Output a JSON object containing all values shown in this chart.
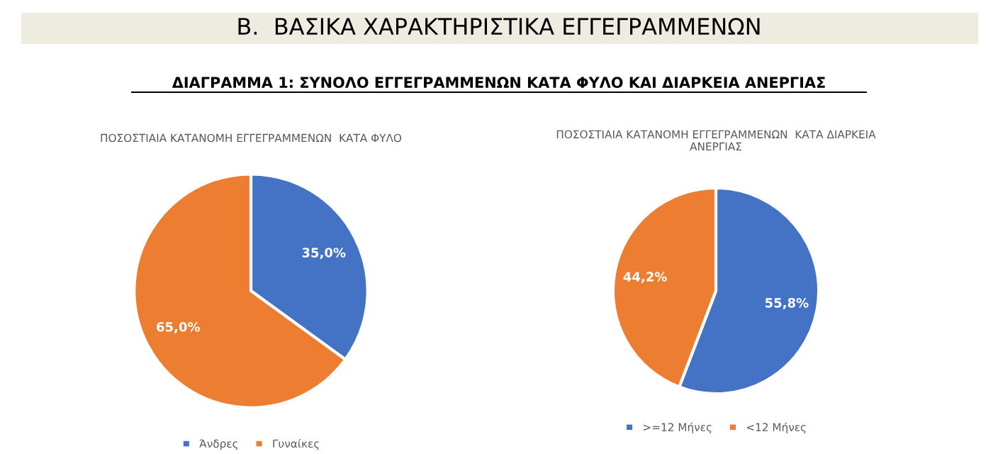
{
  "chart_data": [
    {
      "type": "pie",
      "title": "ΠΟΣΟΣΤΙΑΙΑ ΚΑΤΑΝΟΜΗ ΕΓΓΕΓΡΑΜΜΕΝΩΝ  ΚΑΤΑ ΦΥΛΟ",
      "annotations": [
        "B.  ΒΑΣΙΚΑ ΧΑΡΑΚΤΗΡΙΣΤΙΚΑ ΕΓΓΕΓΡΑΜΜΕΝΩΝ",
        "ΔΙΑΓΡΑΜΜΑ 1: ΣΥΝΟΛΟ ΕΓΓΕΓΡΑΜΜΕΝΩΝ ΚΑΤΑ ΦΥΛΟ ΚΑΙ ΔΙΑΡΚΕΙΑ ΑΝΕΡΓΙΑΣ"
      ],
      "categories": [
        "Άνδρες",
        "Γυναίκες"
      ],
      "values": [
        35.0,
        65.0
      ],
      "colors": [
        "#4472c4",
        "#ed7d31"
      ],
      "value_labels": [
        "35,0%",
        "65,0%"
      ],
      "legend": "bottom"
    },
    {
      "type": "pie",
      "title": "ΠΟΣΟΣΤΙΑΙΑ ΚΑΤΑΝΟΜΗ ΕΓΓΕΓΡΑΜΜΕΝΩΝ  ΚΑΤΑ ΔΙΑΡΚΕΙΑ\nΑΝΕΡΓΙΑΣ",
      "categories": [
        ">=12 Μήνες",
        "<12 Μήνες"
      ],
      "values": [
        55.8,
        44.2
      ],
      "colors": [
        "#4472c4",
        "#ed7d31"
      ],
      "value_labels": [
        "55,8%",
        "44,2%"
      ],
      "legend": "bottom"
    }
  ]
}
